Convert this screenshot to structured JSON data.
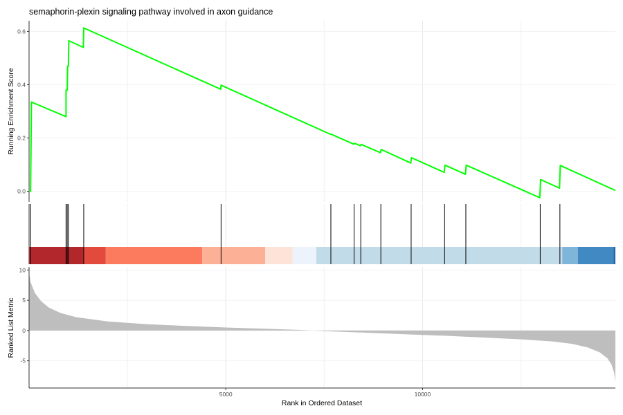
{
  "chart_data": {
    "type": "line",
    "title": "semaphorin-plexin signaling pathway involved in axon guidance",
    "xlabel": "Rank in Ordered Dataset",
    "xlim": [
      1,
      14900
    ],
    "x_ticks": [
      5000,
      10000
    ],
    "panels": {
      "running_score": {
        "ylabel": "Running Enrichment Score",
        "ylim": [
          -0.04,
          0.64
        ],
        "y_ticks": [
          0.0,
          0.2,
          0.4,
          0.6
        ],
        "y_tick_labels": [
          "0.0",
          "0.2",
          "0.4",
          "0.6"
        ],
        "line_color": "#00ff00",
        "points": [
          [
            1,
            0.0
          ],
          [
            40,
            0.0
          ],
          [
            60,
            0.335
          ],
          [
            940,
            0.28
          ],
          [
            940,
            0.38
          ],
          [
            970,
            0.38
          ],
          [
            980,
            0.47
          ],
          [
            1000,
            0.47
          ],
          [
            1010,
            0.565
          ],
          [
            1380,
            0.54
          ],
          [
            1390,
            0.613
          ],
          [
            4870,
            0.383
          ],
          [
            4880,
            0.398
          ],
          [
            7660,
            0.214
          ],
          [
            7680,
            0.214
          ],
          [
            8250,
            0.177
          ],
          [
            8270,
            0.18
          ],
          [
            8420,
            0.171
          ],
          [
            8440,
            0.176
          ],
          [
            8930,
            0.145
          ],
          [
            8950,
            0.157
          ],
          [
            9700,
            0.106
          ],
          [
            9720,
            0.126
          ],
          [
            10550,
            0.071
          ],
          [
            10570,
            0.098
          ],
          [
            11090,
            0.064
          ],
          [
            11110,
            0.098
          ],
          [
            12980,
            -0.024
          ],
          [
            13000,
            0.044
          ],
          [
            13480,
            0.012
          ],
          [
            13500,
            0.097
          ],
          [
            14900,
            0.003
          ]
        ]
      },
      "hits": {
        "positions": [
          40,
          940,
          970,
          1000,
          1390,
          4880,
          7670,
          8260,
          8430,
          8940,
          9710,
          10560,
          11100,
          12990,
          13490
        ]
      },
      "color_bar": {
        "segments": [
          {
            "from": 1,
            "to": 1400,
            "color": "#b2272c"
          },
          {
            "from": 1400,
            "to": 1950,
            "color": "#e34a3e"
          },
          {
            "from": 1950,
            "to": 4400,
            "color": "#fc7a5e"
          },
          {
            "from": 4400,
            "to": 6000,
            "color": "#fcb095"
          },
          {
            "from": 6000,
            "to": 6700,
            "color": "#fee4d8"
          },
          {
            "from": 6700,
            "to": 7300,
            "color": "#edf3fb"
          },
          {
            "from": 7300,
            "to": 13550,
            "color": "#c2dbe9"
          },
          {
            "from": 13550,
            "to": 13950,
            "color": "#80b5da"
          },
          {
            "from": 13950,
            "to": 14850,
            "color": "#4189c2"
          },
          {
            "from": 14850,
            "to": 14900,
            "color": "#2166ac"
          }
        ]
      },
      "ranked_metric": {
        "ylabel": "Ranked List Metric",
        "ylim": [
          -9.5,
          10.5
        ],
        "y_ticks": [
          -5,
          0,
          5,
          10
        ],
        "y_tick_labels": [
          "-5",
          "0",
          "5",
          "10"
        ],
        "fill_color": "#bebebe",
        "curve": [
          [
            1,
            9.5
          ],
          [
            40,
            8.0
          ],
          [
            150,
            6.2
          ],
          [
            300,
            4.9
          ],
          [
            500,
            3.8
          ],
          [
            800,
            2.9
          ],
          [
            1200,
            2.2
          ],
          [
            2000,
            1.5
          ],
          [
            3000,
            1.05
          ],
          [
            4000,
            0.75
          ],
          [
            5000,
            0.5
          ],
          [
            6000,
            0.3
          ],
          [
            6900,
            0.1
          ],
          [
            7200,
            0.0
          ],
          [
            7500,
            -0.1
          ],
          [
            8500,
            -0.35
          ],
          [
            9500,
            -0.6
          ],
          [
            10500,
            -0.85
          ],
          [
            11500,
            -1.15
          ],
          [
            12500,
            -1.45
          ],
          [
            13300,
            -1.8
          ],
          [
            13800,
            -2.2
          ],
          [
            14200,
            -2.8
          ],
          [
            14500,
            -3.6
          ],
          [
            14700,
            -4.6
          ],
          [
            14800,
            -5.6
          ],
          [
            14870,
            -7.0
          ],
          [
            14900,
            -8.5
          ]
        ]
      }
    },
    "grid": true
  }
}
